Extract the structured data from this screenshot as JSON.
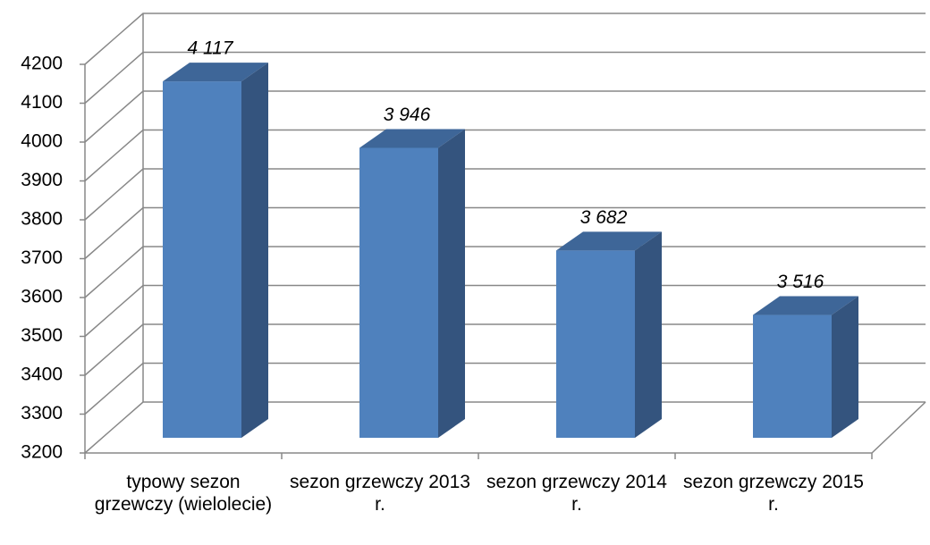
{
  "chart_data": {
    "type": "bar3d",
    "categories": [
      "typowy sezon grzewczy (wielolecie)",
      "sezon grzewczy 2013 r.",
      "sezon grzewczy 2014 r.",
      "sezon grzewczy 2015 r."
    ],
    "values": [
      4117,
      3946,
      3682,
      3516
    ],
    "value_labels": [
      "4 117",
      "3 946",
      "3 682",
      "3 516"
    ],
    "color": "#4f81bd",
    "ylim": [
      3200,
      4200
    ],
    "yticks": [
      3200,
      3300,
      3400,
      3500,
      3600,
      3700,
      3800,
      3900,
      4000,
      4100,
      4200
    ],
    "grid": true
  }
}
